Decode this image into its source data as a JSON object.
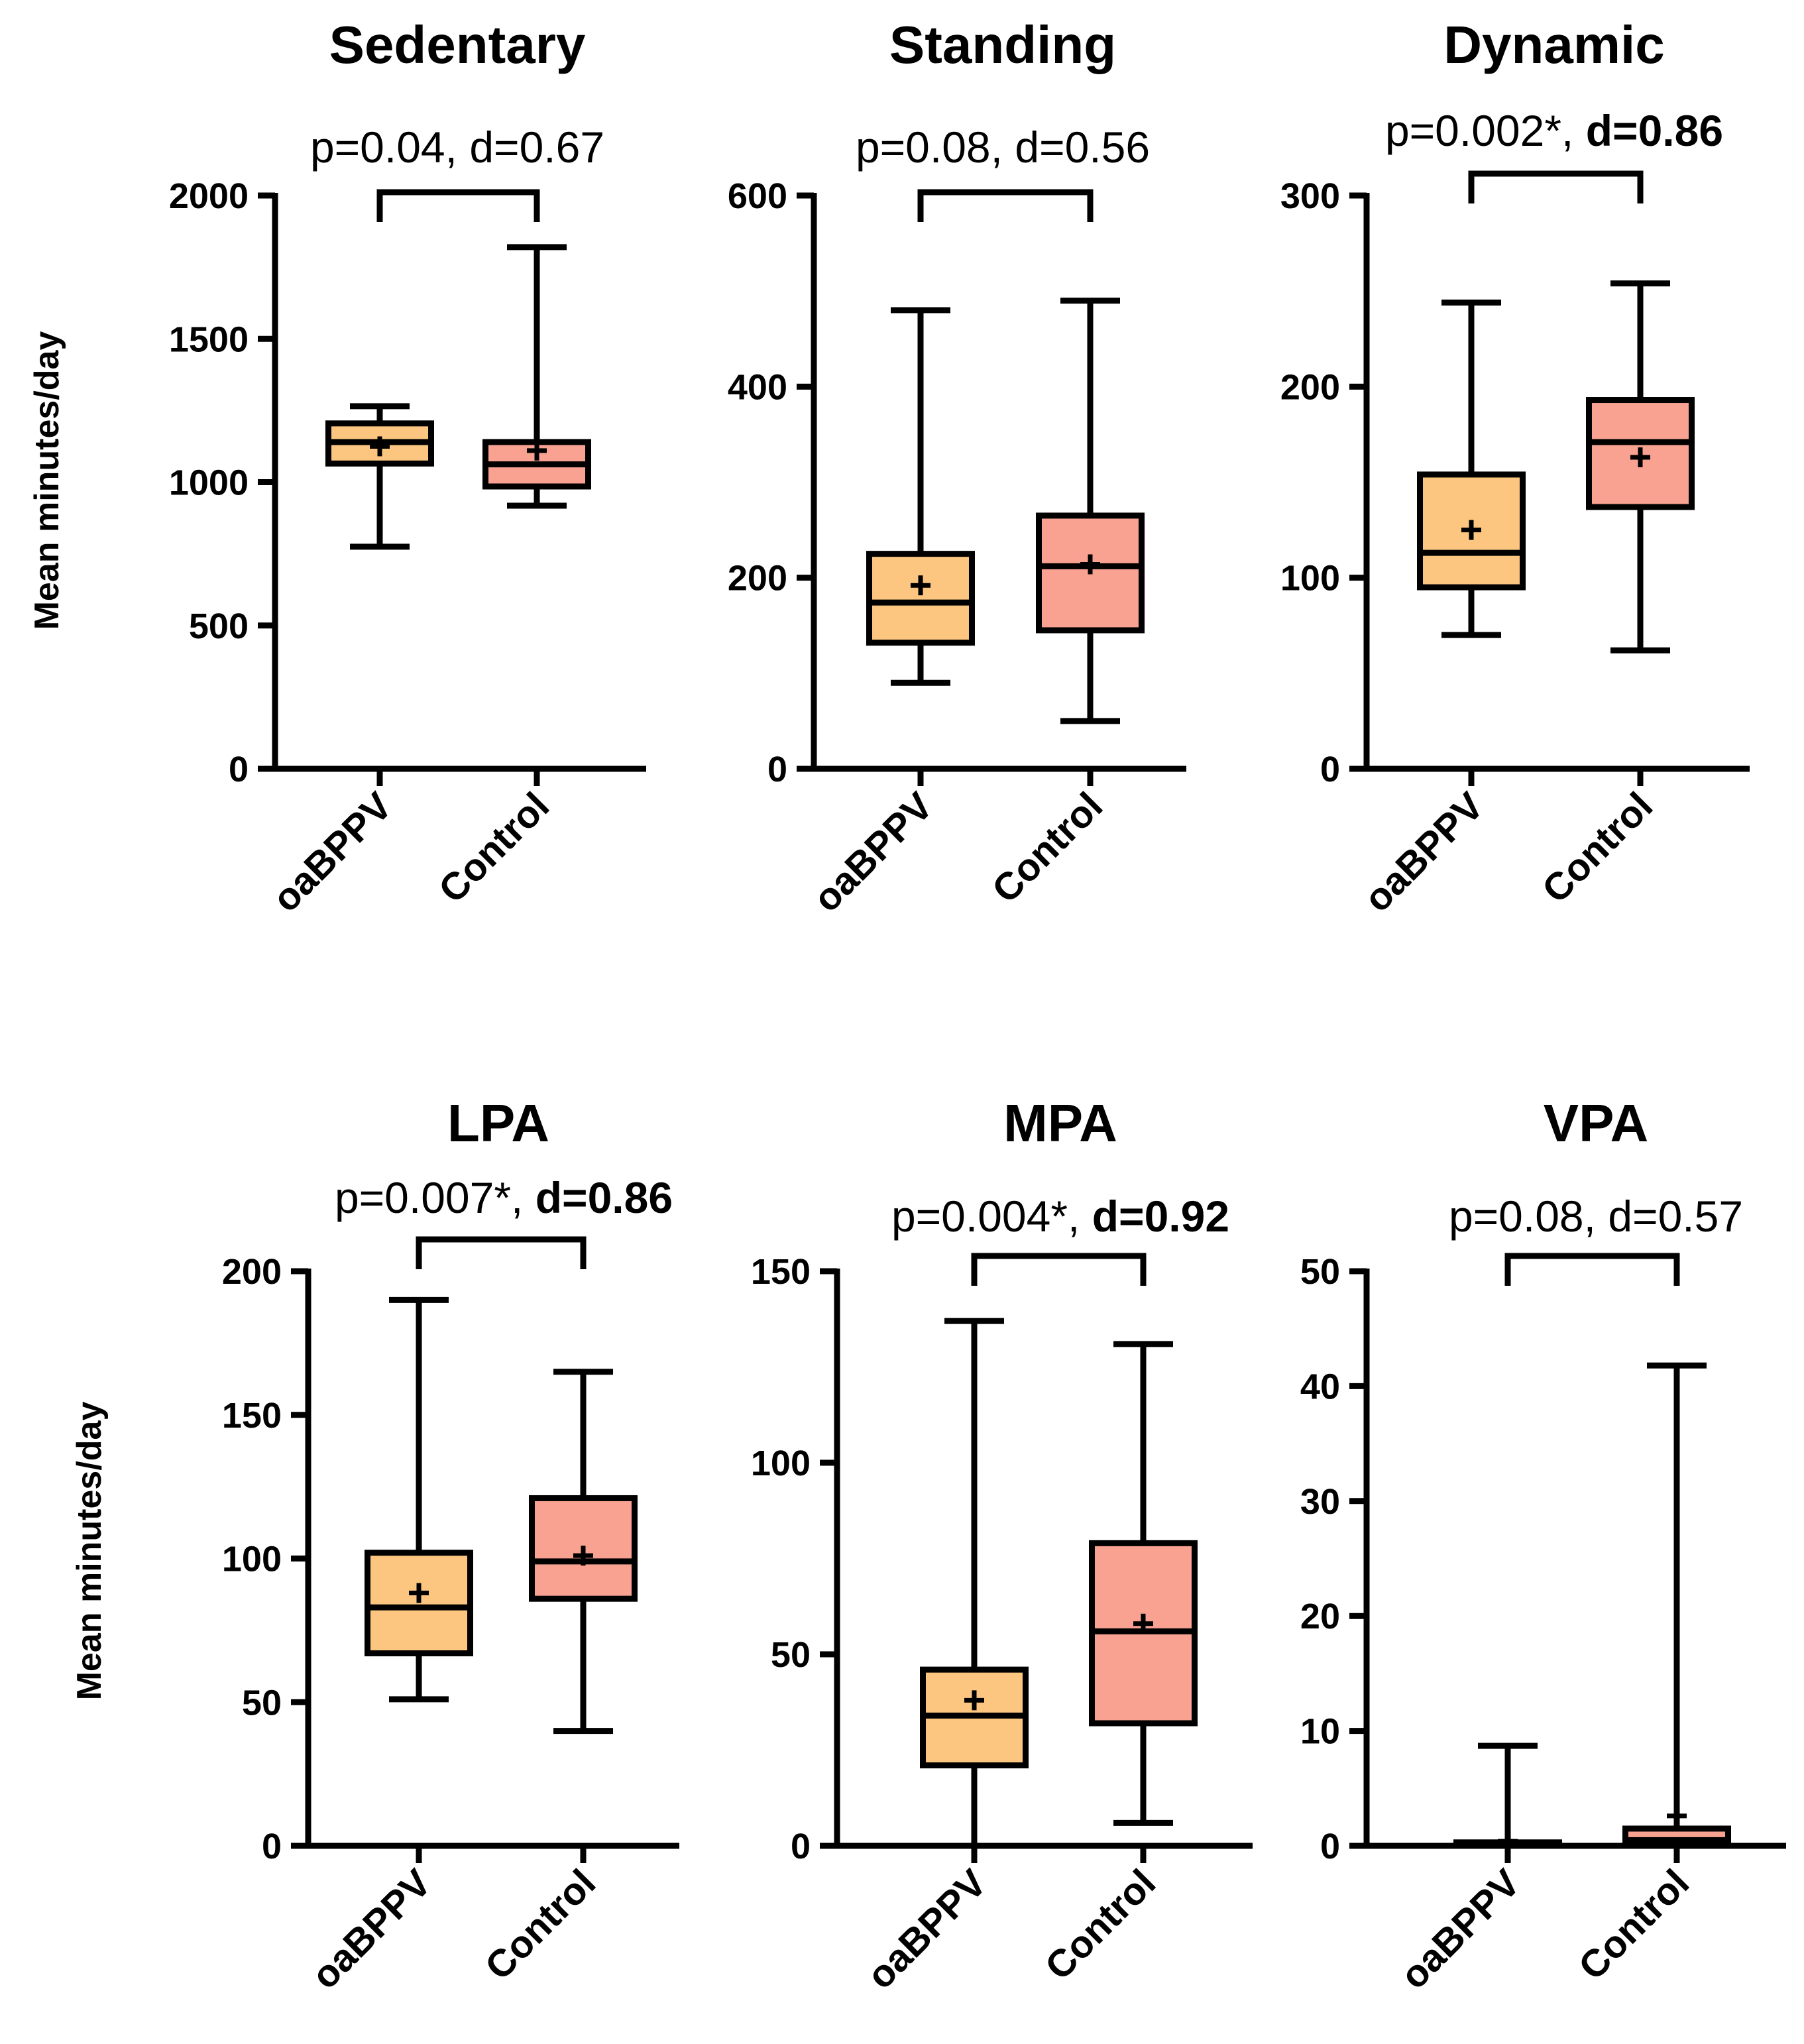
{
  "chart_data": [
    {
      "type": "box",
      "title": "Sedentary",
      "stat_prefix": "p=0.04, ",
      "stat_effect": "d=0.67",
      "effect_bold": false,
      "ylabel": "Mean minutes/day",
      "ylim": [
        0,
        2000
      ],
      "yticks": [
        0,
        500,
        1000,
        1500,
        2000
      ],
      "categories": [
        "oaBPPV",
        "Control"
      ],
      "groups": [
        {
          "name": "oaBPPV",
          "min": 775,
          "q1": 1065,
          "median": 1140,
          "q3": 1205,
          "max": 1265,
          "mean": 1125,
          "color": "#FDC680"
        },
        {
          "name": "Control",
          "min": 918,
          "q1": 985,
          "median": 1062,
          "q3": 1140,
          "max": 1820,
          "mean": 1110,
          "color": "#F9A291"
        }
      ]
    },
    {
      "type": "box",
      "title": "Standing",
      "stat_prefix": "p=0.08, ",
      "stat_effect": "d=0.56",
      "effect_bold": false,
      "ylabel": "",
      "ylim": [
        0,
        600
      ],
      "yticks": [
        0,
        200,
        400,
        600
      ],
      "categories": [
        "oaBPPV",
        "Control"
      ],
      "groups": [
        {
          "name": "oaBPPV",
          "min": 90,
          "q1": 132,
          "median": 174,
          "q3": 225,
          "max": 480,
          "mean": 192,
          "color": "#FDC680"
        },
        {
          "name": "Control",
          "min": 50,
          "q1": 145,
          "median": 212,
          "q3": 265,
          "max": 490,
          "mean": 214,
          "color": "#F9A291"
        }
      ]
    },
    {
      "type": "box",
      "title": "Dynamic",
      "stat_prefix": "p=0.002*, ",
      "stat_effect": "d=0.86",
      "effect_bold": true,
      "ylabel": "",
      "ylim": [
        0,
        300
      ],
      "yticks": [
        0,
        100,
        200,
        300
      ],
      "categories": [
        "oaBPPV",
        "Control"
      ],
      "groups": [
        {
          "name": "oaBPPV",
          "min": 70,
          "q1": 95,
          "median": 113,
          "q3": 154,
          "max": 244,
          "mean": 125,
          "color": "#FDC680"
        },
        {
          "name": "Control",
          "min": 62,
          "q1": 137,
          "median": 171,
          "q3": 193,
          "max": 254,
          "mean": 163,
          "color": "#F9A291"
        }
      ]
    },
    {
      "type": "box",
      "title": "LPA",
      "stat_prefix": "p=0.007*, ",
      "stat_effect": "d=0.86",
      "effect_bold": true,
      "ylabel": "Mean minutes/day",
      "ylim": [
        0,
        200
      ],
      "yticks": [
        0,
        50,
        100,
        150,
        200
      ],
      "categories": [
        "oaBPPV",
        "Control"
      ],
      "groups": [
        {
          "name": "oaBPPV",
          "min": 51,
          "q1": 67,
          "median": 83,
          "q3": 102,
          "max": 190,
          "mean": 88,
          "color": "#FDC680"
        },
        {
          "name": "Control",
          "min": 40,
          "q1": 86,
          "median": 99,
          "q3": 121,
          "max": 165,
          "mean": 101,
          "color": "#F9A291"
        }
      ]
    },
    {
      "type": "box",
      "title": "MPA",
      "stat_prefix": "p=0.004*, ",
      "stat_effect": "d=0.92",
      "effect_bold": true,
      "ylabel": "",
      "ylim": [
        0,
        150
      ],
      "yticks": [
        0,
        50,
        100,
        150
      ],
      "categories": [
        "oaBPPV",
        "Control"
      ],
      "groups": [
        {
          "name": "oaBPPV",
          "min": 0,
          "q1": 21,
          "median": 34,
          "q3": 46,
          "max": 137,
          "mean": 38,
          "color": "#FDC680"
        },
        {
          "name": "Control",
          "min": 6,
          "q1": 32,
          "median": 56,
          "q3": 79,
          "max": 131,
          "mean": 58,
          "color": "#F9A291"
        }
      ]
    },
    {
      "type": "box",
      "title": "VPA",
      "stat_prefix": "p=0.08, ",
      "stat_effect": "d=0.57",
      "effect_bold": false,
      "ylabel": "",
      "ylim": [
        0,
        50
      ],
      "yticks": [
        0,
        10,
        20,
        30,
        40,
        50
      ],
      "categories": [
        "oaBPPV",
        "Control"
      ],
      "groups": [
        {
          "name": "oaBPPV",
          "min": 0,
          "q1": 0,
          "median": 0.1,
          "q3": 0.3,
          "max": 8.7,
          "mean": 0.4,
          "color": "#FDC680"
        },
        {
          "name": "Control",
          "min": 0,
          "q1": 0,
          "median": 0.5,
          "q3": 1.5,
          "max": 41.8,
          "mean": 2.6,
          "color": "#F9A291"
        }
      ]
    }
  ]
}
